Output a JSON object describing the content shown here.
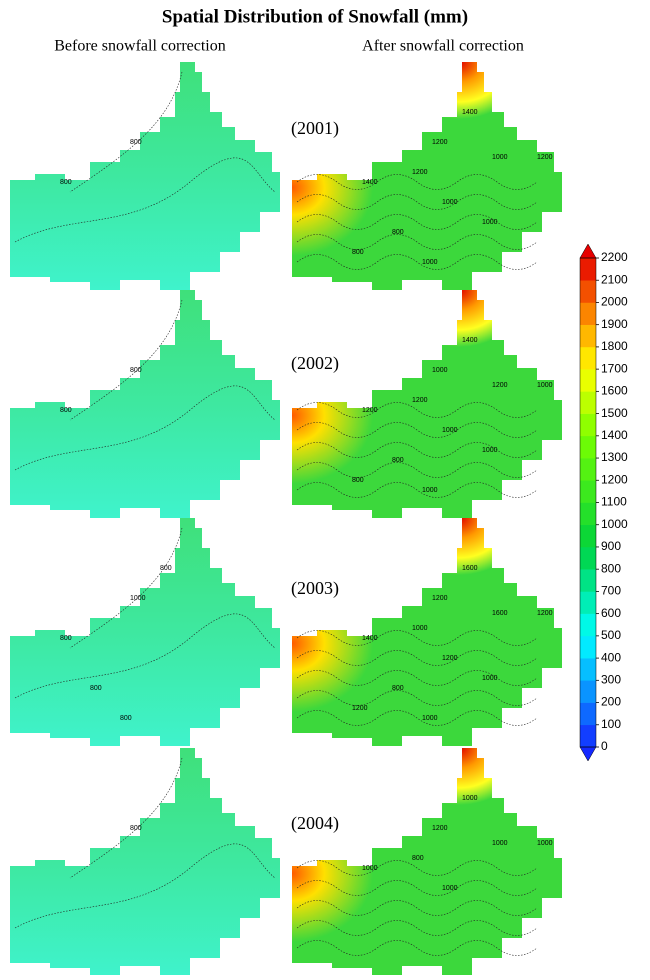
{
  "title": "Spatial Distribution of Snowfall (mm)",
  "columns": [
    "Before snowfall correction",
    "After snowfall correction"
  ],
  "rows": [
    {
      "year": "(2001)",
      "before_contours": [
        "800",
        "800"
      ],
      "after_contours": [
        "1400",
        "1200",
        "1000",
        "1200",
        "1400",
        "1200",
        "1000",
        "800",
        "1000",
        "800",
        "1000"
      ]
    },
    {
      "year": "(2002)",
      "before_contours": [
        "800",
        "800"
      ],
      "after_contours": [
        "1400",
        "1000",
        "1200",
        "1000",
        "1200",
        "1200",
        "1000",
        "800",
        "1000",
        "800",
        "1000"
      ]
    },
    {
      "year": "(2003)",
      "before_contours": [
        "1000",
        "800",
        "800",
        "800",
        "800"
      ],
      "after_contours": [
        "1600",
        "1200",
        "1600",
        "1200",
        "1400",
        "1000",
        "1200",
        "800",
        "1000",
        "1200",
        "1000"
      ]
    },
    {
      "year": "(2004)",
      "before_contours": [
        "800"
      ],
      "after_contours": [
        "1000",
        "1200",
        "1000",
        "1000",
        "1000",
        "800",
        "1000"
      ]
    }
  ],
  "colorbar": {
    "lim": [
      0,
      2200
    ],
    "ticks": [
      0,
      100,
      200,
      300,
      400,
      500,
      600,
      700,
      800,
      900,
      1000,
      1100,
      1200,
      1300,
      1400,
      1500,
      1600,
      1700,
      1800,
      1900,
      2000,
      2100,
      2200
    ]
  }
}
